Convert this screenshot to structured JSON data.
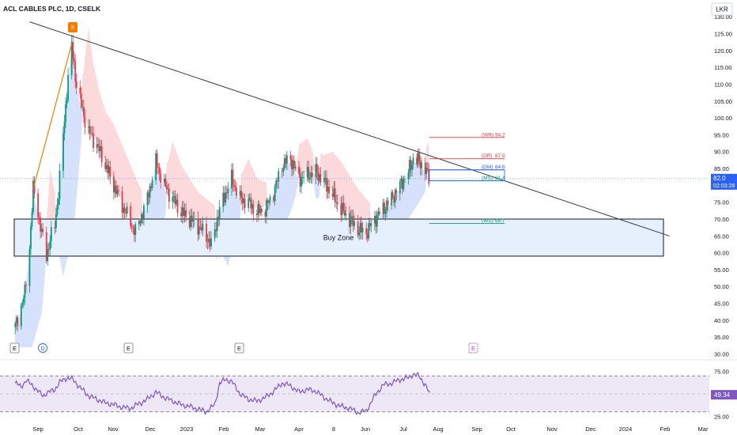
{
  "header": {
    "symbol_title": "ACL CABLES PLC, 1D, CSELK",
    "currency": "LKR"
  },
  "price_axis": {
    "ticks": [
      "30.00",
      "35.00",
      "40.00",
      "45.00",
      "50.00",
      "55.00",
      "60.00",
      "65.00",
      "70.00",
      "75.00",
      "80.00",
      "85.00",
      "90.00",
      "95.00",
      "100.00",
      "105.00",
      "110.00",
      "115.00",
      "120.00",
      "125.00",
      "130.00"
    ],
    "last_price": "82.0",
    "countdown": "02:03:28",
    "last_price_color": "#2962ff"
  },
  "rsi_axis": {
    "ticks": [
      "75.00",
      "25.00"
    ],
    "value": "49.34",
    "value_color": "#7e57c2"
  },
  "time_axis": {
    "labels": [
      "Sep",
      "Oct",
      "Nov",
      "Dec",
      "2023",
      "Feb",
      "Mar",
      "Apr",
      "8",
      "Jun",
      "Jul",
      "Aug",
      "Sep",
      "Oct",
      "Nov",
      "Dec",
      "2024",
      "Feb",
      "Mar"
    ]
  },
  "annotations": {
    "buy_zone_label": "Buy Zone",
    "peak_marker": "!!",
    "event_markers": [
      "E",
      "D",
      "E",
      "E",
      "E"
    ]
  },
  "pivot_levels": [
    {
      "label": "(WR)",
      "value": "94.2",
      "color": "#f23645"
    },
    {
      "label": "(DR)",
      "value": "87.9",
      "color": "#f23645"
    },
    {
      "label": "(DM)",
      "value": "84.6",
      "color": "#2962ff"
    },
    {
      "label": "(MS)",
      "value": "81.4",
      "color": "#089981"
    },
    {
      "label": "(WS)",
      "value": "68.7",
      "color": "#089981"
    }
  ],
  "colors": {
    "up": "#089981",
    "down": "#f23645",
    "cloud_bear": "#fbd3d6",
    "cloud_bull": "#cfdcfb",
    "zone_fill": "#e6f0fc",
    "trendline": "#363a45",
    "swing_line": "#f57c00",
    "rsi_line": "#7e57c2",
    "rsi_band": "#ede7f6"
  },
  "chart_data": {
    "type": "candlestick",
    "price_range": [
      30,
      130
    ],
    "rsi_range": [
      20,
      80
    ],
    "rsi_levels": [
      70,
      50,
      30
    ],
    "buy_zone": [
      59,
      70
    ],
    "trendline": [
      {
        "date": "2022-08-22",
        "price": 128.5
      },
      {
        "date": "2024-02-05",
        "price": 65
      }
    ],
    "swing_line": [
      {
        "date": "2022-08-25",
        "price": 79
      },
      {
        "date": "2022-09-26",
        "price": 122
      }
    ],
    "price_path": [
      [
        "2022-08-10",
        38
      ],
      [
        "2022-08-18",
        48
      ],
      [
        "2022-08-22",
        62
      ],
      [
        "2022-08-25",
        79
      ],
      [
        "2022-08-29",
        72
      ],
      [
        "2022-09-01",
        66
      ],
      [
        "2022-09-05",
        59
      ],
      [
        "2022-09-08",
        64
      ],
      [
        "2022-09-12",
        68
      ],
      [
        "2022-09-15",
        78
      ],
      [
        "2022-09-19",
        95
      ],
      [
        "2022-09-23",
        112
      ],
      [
        "2022-09-26",
        121
      ],
      [
        "2022-09-30",
        110
      ],
      [
        "2022-10-05",
        102
      ],
      [
        "2022-10-10",
        96
      ],
      [
        "2022-10-17",
        92
      ],
      [
        "2022-10-24",
        86
      ],
      [
        "2022-10-31",
        80
      ],
      [
        "2022-11-07",
        74
      ],
      [
        "2022-11-14",
        69
      ],
      [
        "2022-11-18",
        66
      ],
      [
        "2022-11-22",
        70
      ],
      [
        "2022-11-28",
        76
      ],
      [
        "2022-12-05",
        87
      ],
      [
        "2022-12-12",
        80
      ],
      [
        "2022-12-19",
        76
      ],
      [
        "2022-12-26",
        72
      ],
      [
        "2023-01-02",
        70
      ],
      [
        "2023-01-09",
        68
      ],
      [
        "2023-01-16",
        65
      ],
      [
        "2023-01-20",
        62
      ],
      [
        "2023-01-25",
        70
      ],
      [
        "2023-01-30",
        76
      ],
      [
        "2023-02-06",
        82
      ],
      [
        "2023-02-13",
        76
      ],
      [
        "2023-02-20",
        75
      ],
      [
        "2023-02-27",
        72
      ],
      [
        "2023-03-06",
        73
      ],
      [
        "2023-03-13",
        78
      ],
      [
        "2023-03-20",
        86
      ],
      [
        "2023-03-27",
        88
      ],
      [
        "2023-04-03",
        82
      ],
      [
        "2023-04-10",
        83
      ],
      [
        "2023-04-17",
        84
      ],
      [
        "2023-04-24",
        81
      ],
      [
        "2023-05-01",
        77
      ],
      [
        "2023-05-08",
        73
      ],
      [
        "2023-05-15",
        70
      ],
      [
        "2023-05-22",
        67
      ],
      [
        "2023-05-29",
        66
      ],
      [
        "2023-06-05",
        70
      ],
      [
        "2023-06-12",
        73
      ],
      [
        "2023-06-19",
        76
      ],
      [
        "2023-06-26",
        80
      ],
      [
        "2023-07-03",
        84
      ],
      [
        "2023-07-07",
        88
      ],
      [
        "2023-07-12",
        87
      ],
      [
        "2023-07-17",
        85
      ],
      [
        "2023-07-20",
        82
      ]
    ],
    "rsi_path": [
      [
        "2022-08-10",
        62
      ],
      [
        "2022-08-15",
        58
      ],
      [
        "2022-08-19",
        65
      ],
      [
        "2022-08-24",
        60
      ],
      [
        "2022-08-29",
        53
      ],
      [
        "2022-09-02",
        48
      ],
      [
        "2022-09-07",
        52
      ],
      [
        "2022-09-12",
        55
      ],
      [
        "2022-09-16",
        63
      ],
      [
        "2022-09-22",
        68
      ],
      [
        "2022-09-27",
        66
      ],
      [
        "2022-10-03",
        57
      ],
      [
        "2022-10-10",
        48
      ],
      [
        "2022-10-17",
        44
      ],
      [
        "2022-10-24",
        40
      ],
      [
        "2022-10-31",
        38
      ],
      [
        "2022-11-07",
        35
      ],
      [
        "2022-11-14",
        34
      ],
      [
        "2022-11-21",
        39
      ],
      [
        "2022-11-28",
        44
      ],
      [
        "2022-12-05",
        52
      ],
      [
        "2022-12-12",
        46
      ],
      [
        "2022-12-19",
        42
      ],
      [
        "2022-12-26",
        38
      ],
      [
        "2023-01-02",
        36
      ],
      [
        "2023-01-09",
        33
      ],
      [
        "2023-01-16",
        30
      ],
      [
        "2023-01-23",
        38
      ],
      [
        "2023-01-27",
        62
      ],
      [
        "2023-02-01",
        66
      ],
      [
        "2023-02-06",
        64
      ],
      [
        "2023-02-13",
        50
      ],
      [
        "2023-02-20",
        44
      ],
      [
        "2023-02-27",
        42
      ],
      [
        "2023-03-06",
        46
      ],
      [
        "2023-03-13",
        53
      ],
      [
        "2023-03-20",
        62
      ],
      [
        "2023-03-27",
        59
      ],
      [
        "2023-04-03",
        52
      ],
      [
        "2023-04-10",
        55
      ],
      [
        "2023-04-17",
        53
      ],
      [
        "2023-04-24",
        46
      ],
      [
        "2023-05-01",
        40
      ],
      [
        "2023-05-08",
        36
      ],
      [
        "2023-05-15",
        34
      ],
      [
        "2023-05-22",
        29
      ],
      [
        "2023-05-29",
        31
      ],
      [
        "2023-06-05",
        48
      ],
      [
        "2023-06-12",
        60
      ],
      [
        "2023-06-19",
        62
      ],
      [
        "2023-06-26",
        66
      ],
      [
        "2023-07-03",
        68
      ],
      [
        "2023-07-07",
        72
      ],
      [
        "2023-07-12",
        70
      ],
      [
        "2023-07-17",
        60
      ],
      [
        "2023-07-21",
        49
      ]
    ]
  }
}
